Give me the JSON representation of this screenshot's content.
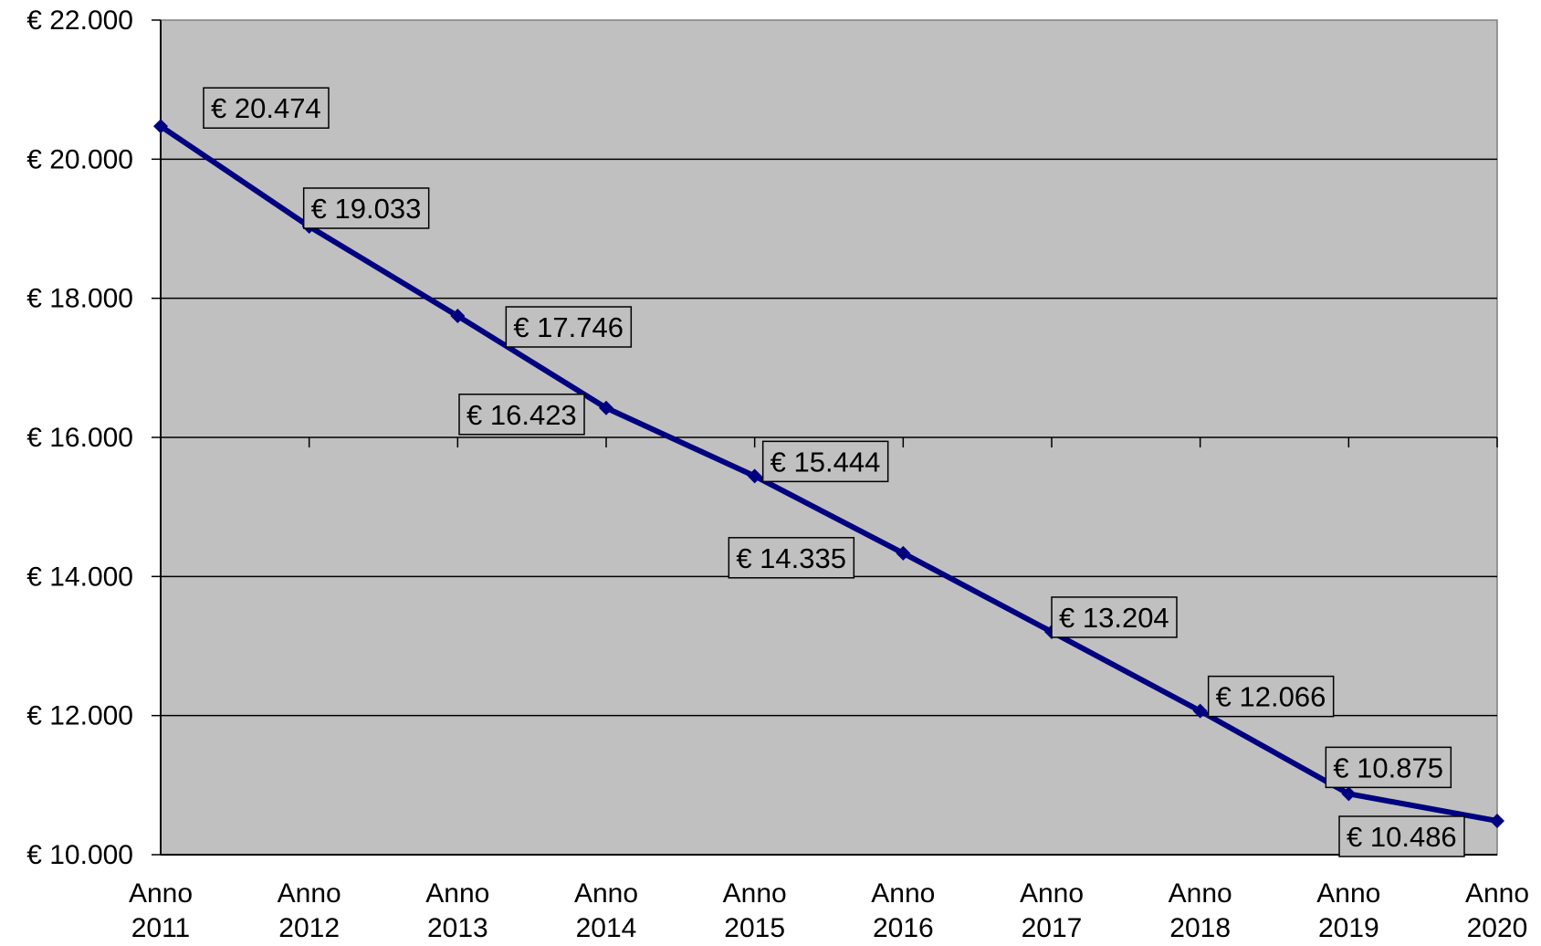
{
  "chart_data": {
    "type": "line",
    "title": "",
    "xlabel": "",
    "ylabel": "",
    "categories": [
      [
        "Anno",
        "2011"
      ],
      [
        "Anno",
        "2012"
      ],
      [
        "Anno",
        "2013"
      ],
      [
        "Anno",
        "2014"
      ],
      [
        "Anno",
        "2015"
      ],
      [
        "Anno",
        "2016"
      ],
      [
        "Anno",
        "2017"
      ],
      [
        "Anno",
        "2018"
      ],
      [
        "Anno",
        "2019"
      ],
      [
        "Anno",
        "2020"
      ]
    ],
    "values": [
      20474,
      19033,
      17746,
      16423,
      15444,
      14335,
      13204,
      12066,
      10875,
      10486
    ],
    "data_labels": [
      "€ 20.474",
      "€ 19.033",
      "€ 17.746",
      "€ 16.423",
      "€ 15.444",
      "€ 14.335",
      "€ 13.204",
      "€ 12.066",
      "€ 10.875",
      "€ 10.486"
    ],
    "ylim": [
      10000,
      22000
    ],
    "yticks": [
      10000,
      12000,
      14000,
      16000,
      18000,
      20000,
      22000
    ],
    "ytick_labels": [
      "€ 10.000",
      "€ 12.000",
      "€ 14.000",
      "€ 16.000",
      "€ 18.000",
      "€ 20.000",
      "€ 22.000"
    ],
    "grid": true,
    "legend": "none",
    "colors": {
      "plot_background": "#c0c0c0",
      "line": "#000080",
      "gridline": "#000000",
      "label_box_fill": "#c0c0c0",
      "label_box_stroke": "#000000"
    }
  }
}
